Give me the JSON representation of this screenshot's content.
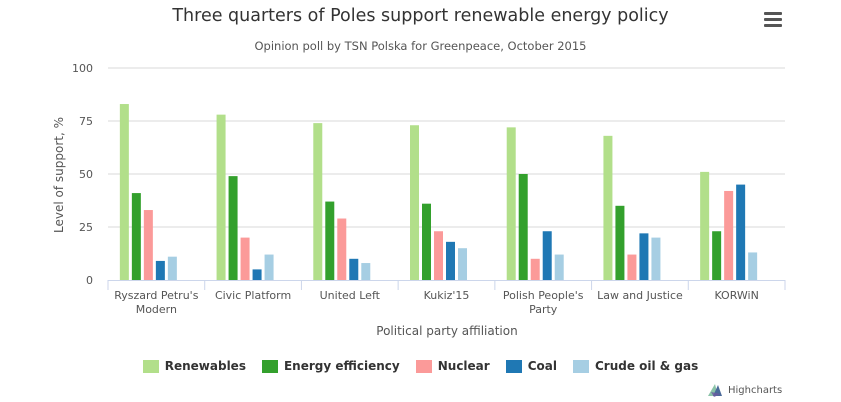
{
  "menu_icon": "hamburger-menu-icon",
  "credits": {
    "label": "Highcharts",
    "icon": "highcharts-logo-icon"
  },
  "chart_data": {
    "type": "bar",
    "title": "Three quarters of Poles support renewable energy policy",
    "subtitle": "Opinion poll by TSN Polska for Greenpeace, October 2015",
    "xlabel": "Political party affiliation",
    "ylabel": "Level of support, %",
    "ylim": [
      0,
      100
    ],
    "yticks": [
      0,
      25,
      50,
      75,
      100
    ],
    "grid": true,
    "legend_position": "bottom",
    "categories": [
      "Ryszard Petru's Modern",
      "Civic Platform",
      "United Left",
      "Kukiz'15",
      "Polish People's Party",
      "Law and Justice",
      "KORWiN"
    ],
    "category_lines": [
      [
        "Ryszard Petru's",
        "Modern"
      ],
      [
        "Civic Platform"
      ],
      [
        "United Left"
      ],
      [
        "Kukiz'15"
      ],
      [
        "Polish People's",
        "Party"
      ],
      [
        "Law and Justice"
      ],
      [
        "KORWiN"
      ]
    ],
    "series": [
      {
        "name": "Renewables",
        "color": "#b2df8a",
        "values": [
          83,
          78,
          74,
          73,
          72,
          68,
          51
        ]
      },
      {
        "name": "Energy efficiency",
        "color": "#33a02c",
        "values": [
          41,
          49,
          37,
          36,
          50,
          35,
          23
        ]
      },
      {
        "name": "Nuclear",
        "color": "#fb9a99",
        "values": [
          33,
          20,
          29,
          23,
          10,
          12,
          42
        ]
      },
      {
        "name": "Coal",
        "color": "#1f78b4",
        "values": [
          9,
          5,
          10,
          18,
          23,
          22,
          45
        ]
      },
      {
        "name": "Crude oil & gas",
        "color": "#a6cee3",
        "values": [
          11,
          12,
          8,
          15,
          12,
          20,
          13
        ]
      }
    ]
  }
}
